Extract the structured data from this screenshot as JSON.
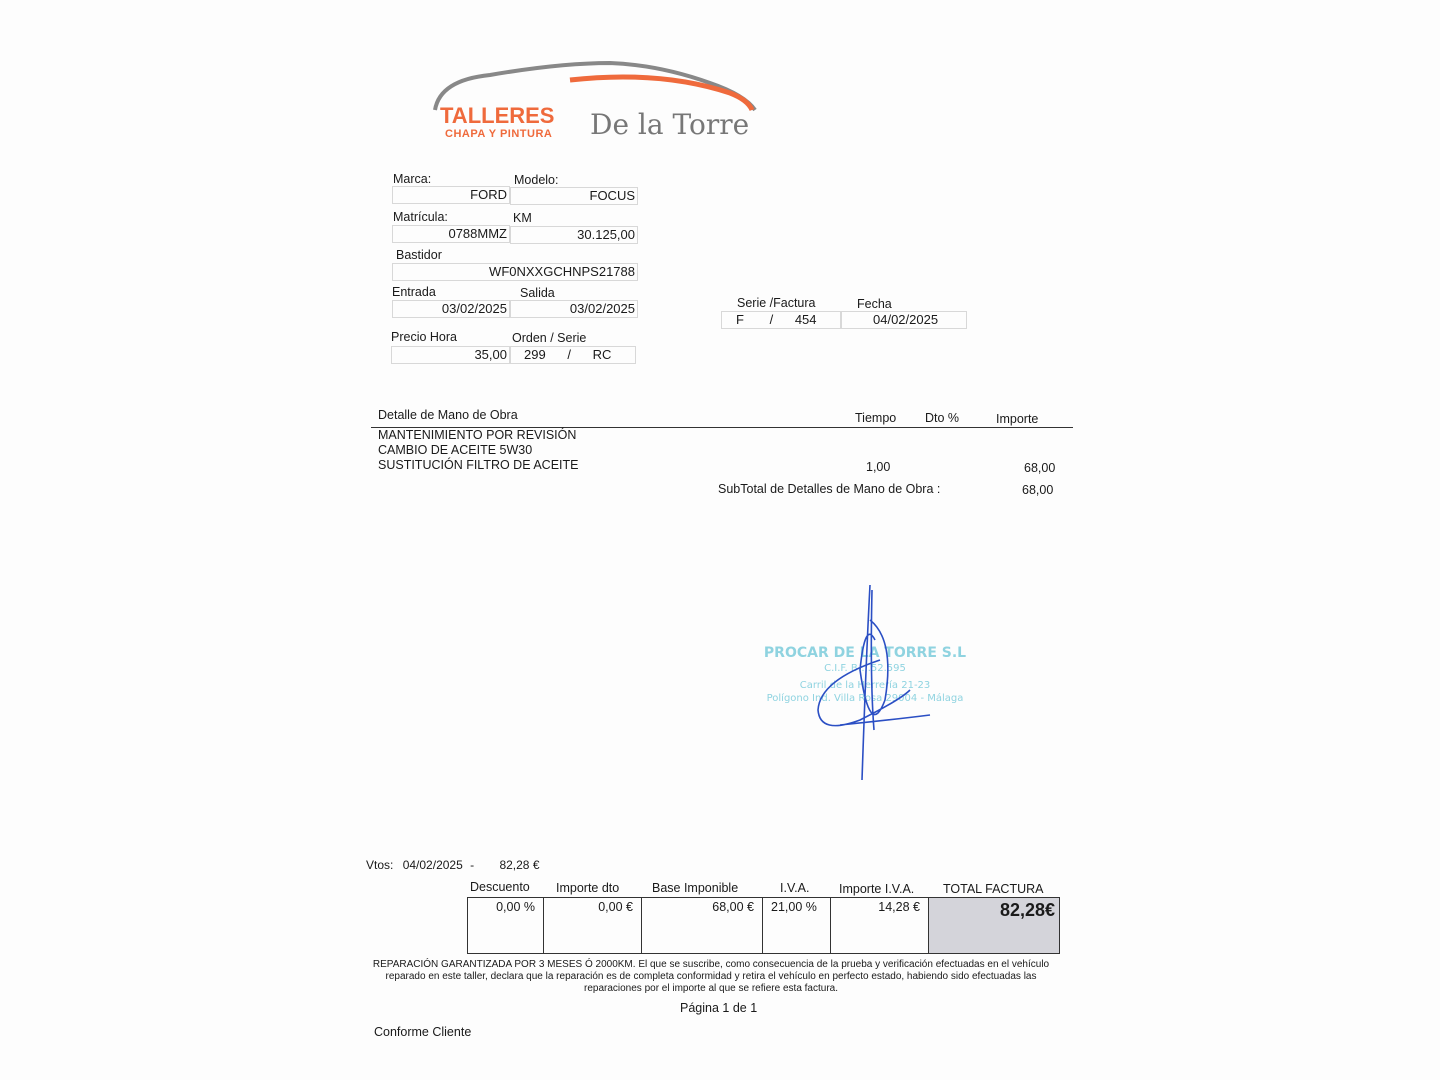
{
  "logo": {
    "line1": "TALLERES",
    "line2": "CHAPA Y PINTURA",
    "line3": "De la Torre",
    "accent": "#ef6a3c"
  },
  "vehicle": {
    "marca_label": "Marca:",
    "marca": "FORD",
    "modelo_label": "Modelo:",
    "modelo": "FOCUS",
    "matricula_label": "Matrícula:",
    "matricula": "0788MMZ",
    "km_label": "KM",
    "km": "30.125,00",
    "bastidor_label": "Bastidor",
    "bastidor": "WF0NXXGCHNPS21788",
    "entrada_label": "Entrada",
    "entrada": "03/02/2025",
    "salida_label": "Salida",
    "salida": "03/02/2025",
    "precio_hora_label": "Precio Hora",
    "precio_hora": "35,00",
    "orden_label": "Orden / Serie",
    "orden": "299",
    "orden_sep": "/",
    "serie": "RC"
  },
  "invoice": {
    "serie_label": "Serie /Factura",
    "serie": "F",
    "sep": "/",
    "numero": "454",
    "fecha_label": "Fecha",
    "fecha": "04/02/2025"
  },
  "labor": {
    "headers": {
      "detalle": "Detalle de Mano de Obra",
      "tiempo": "Tiempo",
      "dto": "Dto %",
      "importe": "Importe"
    },
    "lines": [
      "MANTENIMIENTO POR REVISIÓN",
      "CAMBIO DE ACEITE 5W30",
      "SUSTITUCIÓN FILTRO DE ACEITE"
    ],
    "tiempo": "1,00",
    "importe": "68,00",
    "subtotal_label": "SubTotal de Detalles de Mano de Obra :",
    "subtotal": "68,00"
  },
  "stamp": {
    "line1": "PROCAR DE LA TORRE S.L",
    "line2": "C.I.F. B-...52.595",
    "line3": "Carril de la Herrería 21-23",
    "line4": "Polígono Ind. Villa Rosa 29004 - Málaga",
    "color": "#8fd3e0"
  },
  "vtos": {
    "label": "Vtos:",
    "fecha": "04/02/2025",
    "sep": "-",
    "importe": "82,28 €"
  },
  "totals": {
    "headers": [
      "Descuento",
      "Importe dto",
      "Base Imponible",
      "I.V.A.",
      "Importe I.V.A.",
      "TOTAL FACTURA"
    ],
    "values": [
      "0,00  %",
      "0,00  €",
      "68,00  €",
      "21,00 %",
      "14,28  €",
      "82,28€"
    ]
  },
  "footer": {
    "warranty": "REPARACIÓN GARANTIZADA POR 3 MESES Ó 2000KM. El que se suscribe, como consecuencia de la prueba y verificación efectuadas en el vehículo reparado en este taller, declara que la reparación es de completa conformidad y retira el vehículo en perfecto estado, habiendo sido efectuadas las reparaciones por el importe al que se refiere esta factura.",
    "page": "Página 1 de 1",
    "conforme": "Conforme Cliente"
  }
}
